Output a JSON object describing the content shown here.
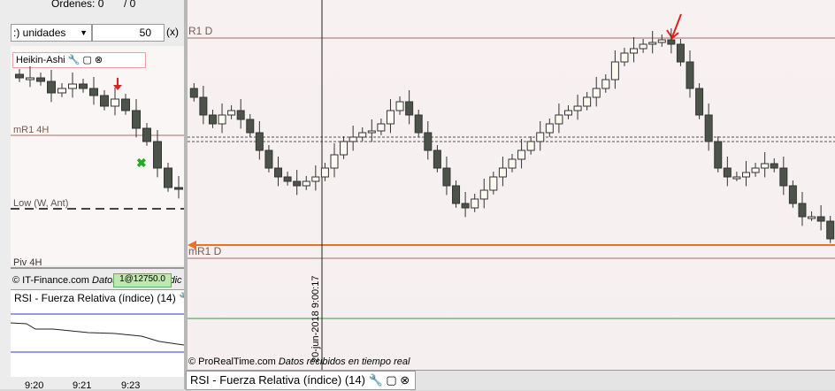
{
  "toolbar": {
    "orders_label": "Órdenes: 0",
    "orders_sep": "/ 0",
    "quantity_unit": ":) unidades",
    "quantity": "50",
    "multiplier": "(x)"
  },
  "left_chart": {
    "indicator": "Heikin-Ashi",
    "levels": [
      "mR1 4H",
      "Low (W, Ant)",
      "Piv 4H"
    ],
    "source": "© IT-Finance.com",
    "source_note": "Datos recibidos indic",
    "order_tag": "1@12750.0",
    "rsi_title": "RSI - Fuerza Relativa (índice) (14)",
    "time_labels": [
      "9:20",
      "9:21",
      "9:23"
    ]
  },
  "main_chart": {
    "levels": [
      "R1 D",
      "mR1 D"
    ],
    "cursor_time": "20-jun-2018 9:00:17",
    "source": "© ProRealTime.com",
    "source_note": "Datos recibidos en tiempo real",
    "rsi_tab": "RSI - Fuerza Relativa (índice) (14)"
  }
}
